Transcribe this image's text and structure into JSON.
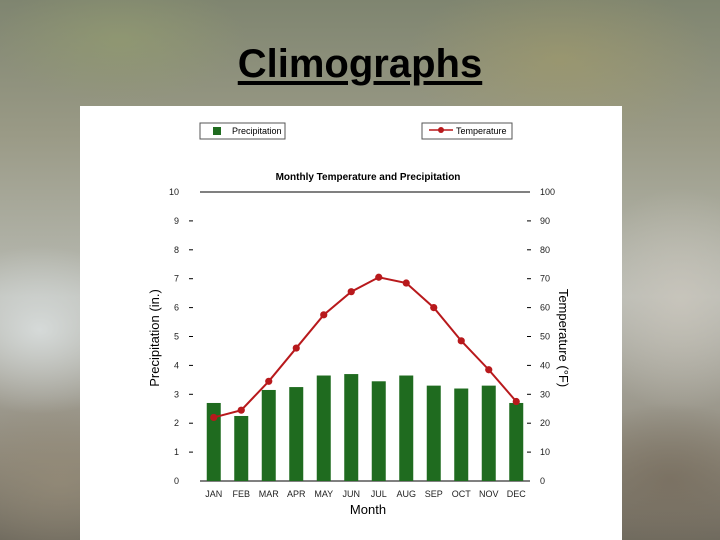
{
  "slide": {
    "title": "Climographs"
  },
  "chart_data": {
    "type": "bar",
    "title": "Monthly Temperature and Precipitation",
    "xlabel": "Month",
    "ylabel": "Precipitation (in.)",
    "y2label": "Temperature (°F)",
    "categories": [
      "JAN",
      "FEB",
      "MAR",
      "APR",
      "MAY",
      "JUN",
      "JUL",
      "AUG",
      "SEP",
      "OCT",
      "NOV",
      "DEC"
    ],
    "ylim": [
      0,
      10
    ],
    "y2lim": [
      0,
      100
    ],
    "yticks": [
      "0",
      "1",
      "2",
      "3",
      "4",
      "5",
      "6",
      "7",
      "8",
      "9",
      "10"
    ],
    "y2ticks": [
      "0",
      "10",
      "20",
      "30",
      "40",
      "50",
      "60",
      "70",
      "80",
      "90",
      "100"
    ],
    "series": [
      {
        "name": "Precipitation",
        "type": "bar",
        "axis": "left",
        "color": "#1f6b1f",
        "values": [
          2.7,
          2.25,
          3.15,
          3.25,
          3.65,
          3.7,
          3.45,
          3.65,
          3.3,
          3.2,
          3.3,
          2.7
        ]
      },
      {
        "name": "Temperature",
        "type": "line",
        "axis": "right",
        "color": "#b8191c",
        "values": [
          22,
          24.5,
          34.5,
          46,
          57.5,
          65.5,
          70.5,
          68.5,
          60,
          48.5,
          38.5,
          27.5
        ]
      }
    ],
    "legend": "top"
  }
}
